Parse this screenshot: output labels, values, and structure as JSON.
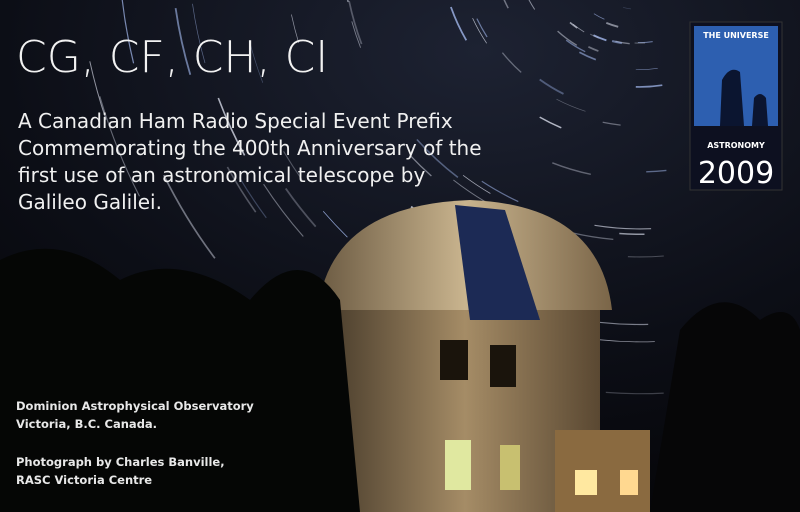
{
  "title": "CG, CF, CH, CI",
  "description": [
    "A Canadian Ham Radio Special Event Prefix",
    "Commemorating the 400th Anniversary of the",
    "first use of an astronomical telescope by",
    "Galileo Galilei."
  ],
  "badge": {
    "top": "THE UNIVERSE",
    "name": "ASTRONOMY",
    "year": "2009"
  },
  "caption": {
    "location": [
      "Dominion Astrophysical Observatory",
      "Victoria, B.C. Canada."
    ],
    "credit": [
      "Photograph by Charles Banville,",
      "RASC Victoria Centre"
    ]
  }
}
